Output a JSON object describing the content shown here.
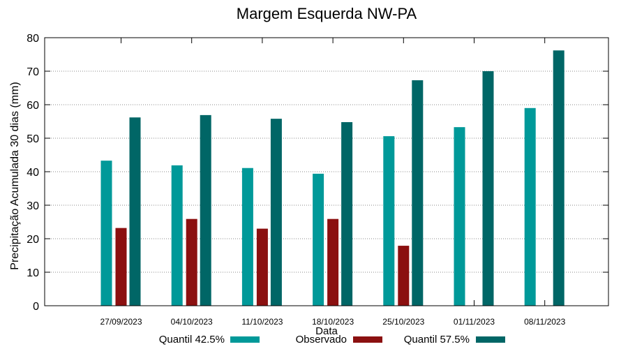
{
  "chart_data": {
    "type": "bar",
    "title": "Margem Esquerda NW-PA",
    "xlabel": "Data",
    "ylabel": "Precipitação Acumulada 30 dias (mm)",
    "ylim": [
      0,
      80
    ],
    "yticks": [
      0,
      10,
      20,
      30,
      40,
      50,
      60,
      70,
      80
    ],
    "grid": true,
    "legend_position": "bottom",
    "categories": [
      "27/09/2023",
      "04/10/2023",
      "11/10/2023",
      "18/10/2023",
      "25/10/2023",
      "01/11/2023",
      "08/11/2023"
    ],
    "series": [
      {
        "name": "Quantil 42.5%",
        "color": "#009999",
        "values": [
          43.3,
          41.9,
          41.1,
          39.4,
          50.6,
          53.3,
          59.0
        ]
      },
      {
        "name": "Observado",
        "color": "#8b1010",
        "values": [
          23.2,
          25.9,
          23.0,
          25.9,
          17.9,
          null,
          null
        ]
      },
      {
        "name": "Quantil 57.5%",
        "color": "#006666",
        "values": [
          56.2,
          56.9,
          55.8,
          54.8,
          67.3,
          70.0,
          76.2
        ]
      }
    ]
  }
}
